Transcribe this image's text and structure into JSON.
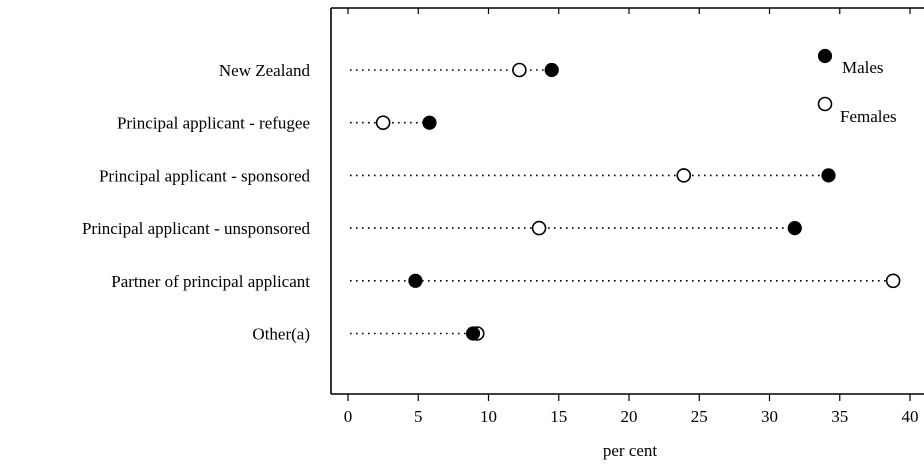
{
  "chart_data": {
    "type": "scatter",
    "title": "",
    "xlabel": "per cent",
    "ylabel": "",
    "xlim": [
      -1,
      40
    ],
    "xticks": [
      0,
      5,
      10,
      15,
      20,
      25,
      30,
      35,
      40
    ],
    "grid": false,
    "legend_position": "top-right",
    "categories": [
      "New Zealand",
      "Principal applicant - refugee",
      "Principal applicant - sponsored",
      "Principal applicant - unsponsored",
      "Partner of principal applicant",
      "Other(a)"
    ],
    "series": [
      {
        "name": "Males",
        "marker": "filled",
        "values": [
          14.5,
          5.8,
          34.2,
          31.8,
          4.8,
          8.9
        ]
      },
      {
        "name": "Females",
        "marker": "hollow",
        "values": [
          12.2,
          2.5,
          23.9,
          13.6,
          38.8,
          9.2
        ]
      }
    ]
  }
}
